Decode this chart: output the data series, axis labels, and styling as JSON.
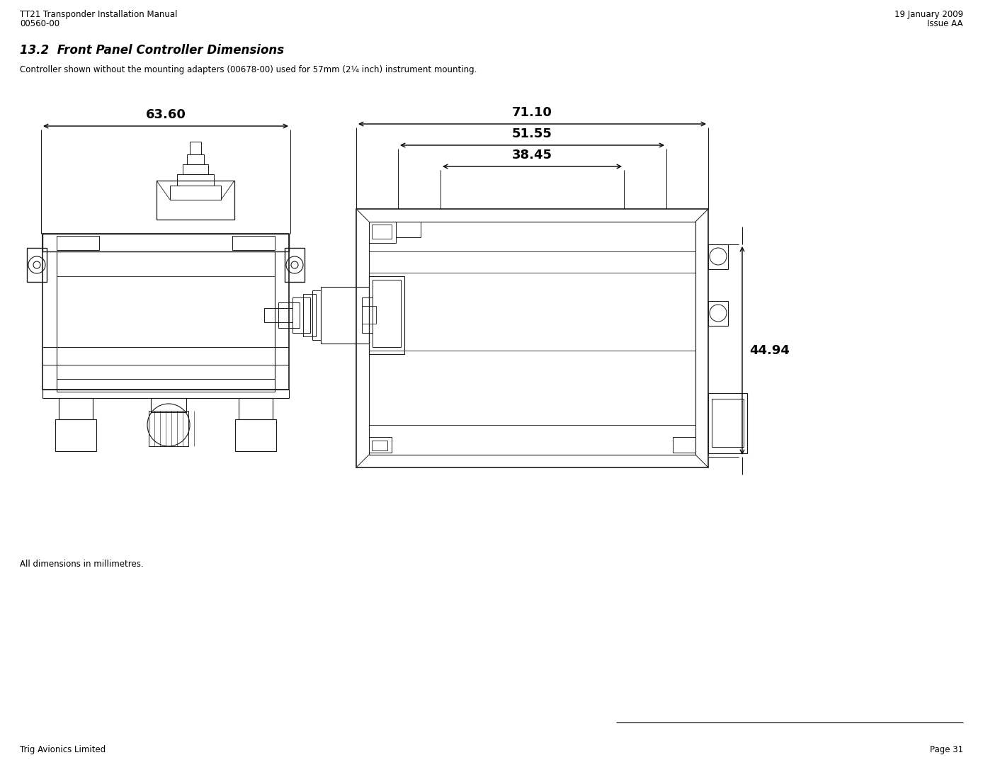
{
  "page_width": 13.88,
  "page_height": 10.73,
  "background_color": "#ffffff",
  "header_left_line1": "TT21 Transponder Installation Manual",
  "header_left_line2": "00560-00",
  "header_right_line1": "19 January 2009",
  "header_right_line2": "Issue AA",
  "section_title": "13.2  Front Panel Controller Dimensions",
  "subtitle": "Controller shown without the mounting adapters (00678-00) used for 57mm (2¼ inch) instrument mounting.",
  "footer_left": "Trig Avionics Limited",
  "footer_right": "Page 31",
  "dim_left": "63.60",
  "dim_right_top": "71.10",
  "dim_right_mid": "51.55",
  "dim_right_bot": "38.45",
  "dim_height": "44.94",
  "note": "All dimensions in millimetres.",
  "font_color": "#000000",
  "line_color": "#1a1a1a",
  "header_fontsize": 8.5,
  "section_fontsize": 12,
  "subtitle_fontsize": 8.5,
  "footer_fontsize": 8.5,
  "dim_fontsize": 13,
  "note_fontsize": 8.5
}
